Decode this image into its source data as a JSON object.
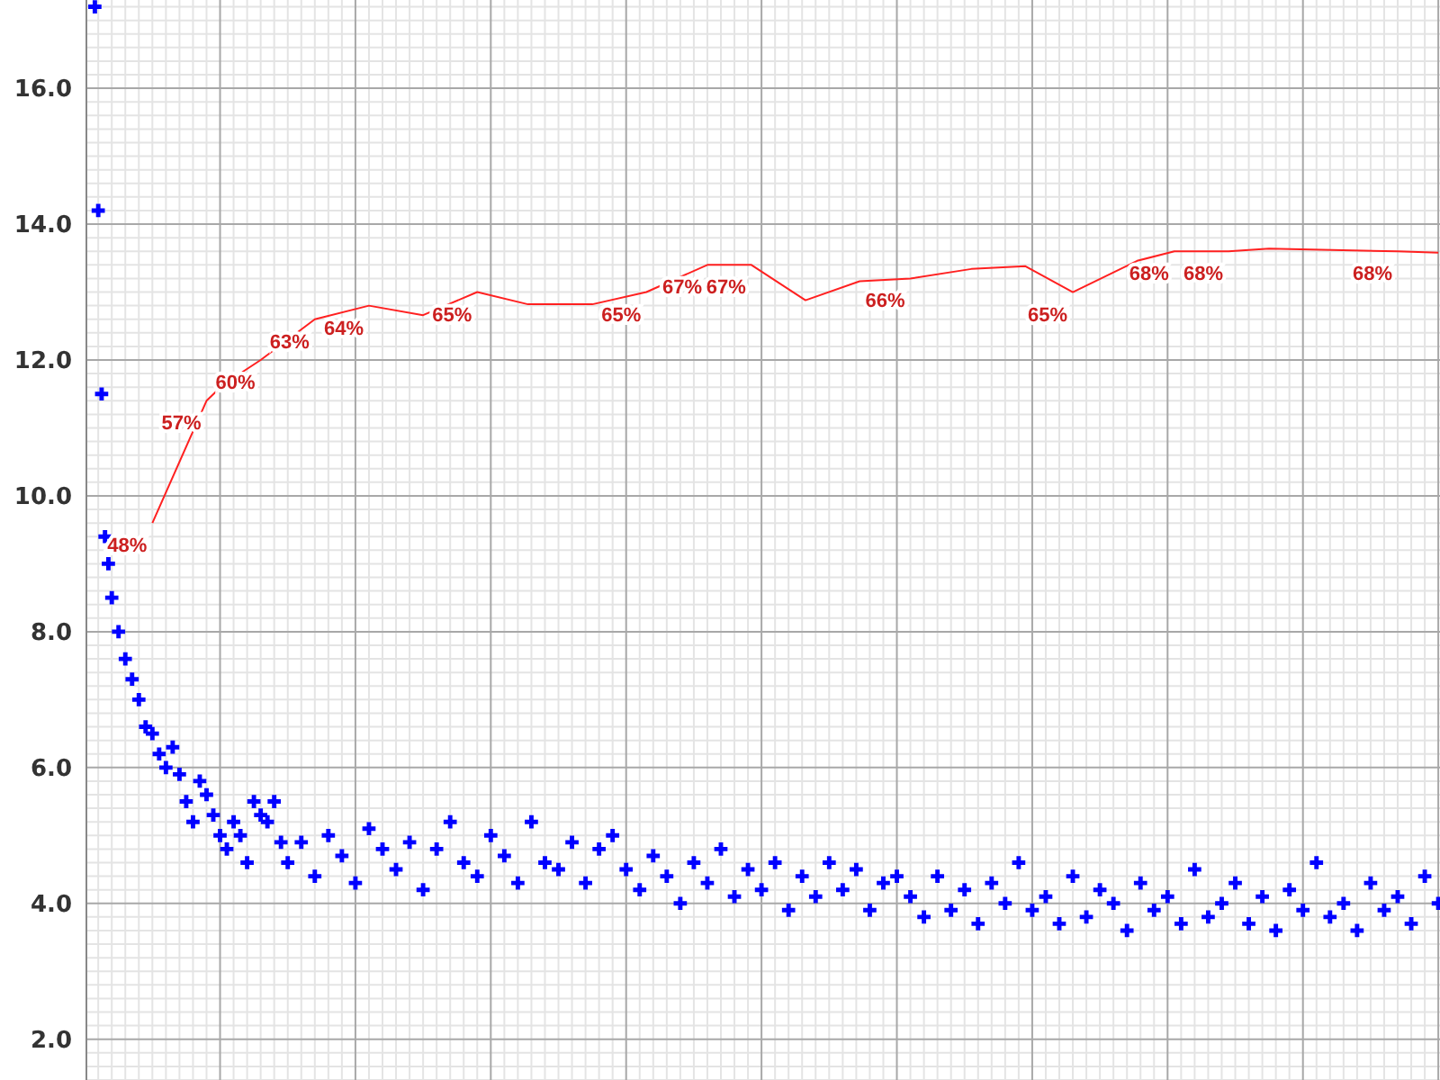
{
  "chart_data": {
    "type": "scatter",
    "grid": true,
    "tick_labels": "y",
    "ylim": [
      1.4,
      17.3
    ],
    "y2lim": [
      7,
      86.5
    ],
    "categories": [
      null,
      null,
      null,
      null,
      null,
      null,
      null,
      null,
      null,
      null,
      null,
      null,
      null,
      null,
      null,
      null,
      null,
      null,
      null,
      null,
      null,
      null,
      null,
      null,
      null,
      null,
      null,
      null,
      null,
      null,
      null,
      null,
      null,
      null,
      null,
      null,
      null,
      null,
      null,
      null,
      null,
      null,
      null,
      null,
      null,
      null,
      null,
      null,
      null,
      null,
      null,
      null,
      null,
      null,
      null,
      null,
      null,
      null,
      null,
      null,
      null,
      null,
      null,
      null,
      null,
      null,
      null,
      null,
      null,
      null,
      null,
      null,
      null,
      null,
      null,
      null,
      null,
      null,
      null,
      null,
      null,
      null,
      null,
      null,
      null,
      null,
      null,
      null,
      null,
      null,
      null,
      null,
      null,
      null,
      null,
      null,
      null,
      null,
      null,
      null,
      null,
      null,
      null,
      null,
      null,
      null,
      null,
      null,
      null,
      null,
      null,
      null,
      null,
      null,
      null,
      null,
      null,
      null,
      null,
      null,
      null,
      null,
      null,
      null,
      null,
      null,
      null,
      null,
      null,
      null,
      null,
      null,
      null,
      null,
      null,
      null,
      null,
      null,
      null,
      null,
      null,
      null,
      null,
      null,
      null,
      null,
      null,
      null,
      null,
      null,
      null,
      null,
      null,
      null,
      null,
      null,
      null,
      null,
      null,
      null,
      null,
      null,
      null,
      null,
      null,
      null,
      null,
      null,
      null,
      null,
      null,
      null,
      null,
      null,
      null,
      null,
      null,
      null,
      null,
      null,
      null,
      null,
      null,
      null,
      null,
      null,
      null,
      null,
      null,
      null,
      null,
      null,
      null,
      null,
      null,
      null,
      null,
      null,
      null,
      null,
      null,
      null,
      null,
      null,
      null,
      null,
      null,
      null,
      null,
      null,
      null,
      null,
      null,
      null,
      null,
      null,
      null,
      null,
      null,
      null,
      null,
      null,
      null,
      null,
      null,
      null,
      null,
      null,
      null,
      null,
      null,
      null,
      null,
      null,
      null,
      null,
      null,
      null,
      null,
      null,
      null,
      null,
      null,
      null,
      null,
      null,
      null,
      null,
      null,
      null,
      null,
      null,
      null,
      null,
      null,
      null,
      null,
      null,
      null,
      null,
      null,
      null,
      null,
      null,
      null,
      null,
      null,
      null,
      null,
      null,
      null,
      null,
      null,
      null,
      null,
      null,
      null,
      null,
      null,
      null,
      null,
      null,
      null,
      null,
      null,
      null,
      null,
      null,
      null,
      null,
      null,
      null,
      null,
      null,
      null,
      null,
      null,
      null,
      null,
      null,
      null,
      null,
      null,
      null,
      null,
      null,
      null,
      null,
      null,
      null,
      null,
      null,
      null,
      null,
      null,
      null,
      null,
      null,
      null,
      null,
      null,
      null,
      null,
      null,
      null,
      null,
      null,
      null,
      null,
      null,
      null,
      null,
      null,
      null,
      null,
      null,
      null,
      null,
      null,
      null,
      null,
      null,
      null,
      null,
      null,
      null,
      null,
      null,
      null,
      null,
      null,
      null,
      null,
      null,
      null,
      null,
      null,
      null,
      null,
      null,
      null,
      null,
      null,
      null,
      null,
      null,
      null,
      null,
      null,
      null,
      null,
      null,
      null,
      null,
      null,
      null,
      null,
      null,
      null,
      null,
      null,
      null,
      null,
      null,
      null,
      null,
      null,
      null,
      null,
      null,
      null,
      null,
      null,
      null,
      null,
      null,
      null,
      null,
      null,
      null
    ],
    "yticks": [
      {
        "value": 1.4,
        "label": null
      },
      {
        "value": 1.6,
        "label": null
      },
      {
        "value": 1.8,
        "label": null
      },
      {
        "value": 2,
        "label": "2.0"
      },
      {
        "value": 2.2,
        "label": null
      },
      {
        "value": 2.4,
        "label": null
      },
      {
        "value": 2.6,
        "label": null
      },
      {
        "value": 2.8,
        "label": null
      },
      {
        "value": 3,
        "label": null
      },
      {
        "value": 3.2,
        "label": null
      },
      {
        "value": 3.4,
        "label": null
      },
      {
        "value": 3.6,
        "label": null
      },
      {
        "value": 3.8,
        "label": null
      },
      {
        "value": 4,
        "label": "4.0"
      },
      {
        "value": 4.2,
        "label": null
      },
      {
        "value": 4.4,
        "label": null
      },
      {
        "value": 4.6,
        "label": null
      },
      {
        "value": 4.8,
        "label": null
      },
      {
        "value": 5,
        "label": null
      },
      {
        "value": 5.2,
        "label": null
      },
      {
        "value": 5.4,
        "label": null
      },
      {
        "value": 5.6,
        "label": null
      },
      {
        "value": 5.8,
        "label": null
      },
      {
        "value": 6,
        "label": "6.0"
      },
      {
        "value": 6.2,
        "label": null
      },
      {
        "value": 6.4,
        "label": null
      },
      {
        "value": 6.6,
        "label": null
      },
      {
        "value": 6.8,
        "label": null
      },
      {
        "value": 7,
        "label": null
      },
      {
        "value": 7.2,
        "label": null
      },
      {
        "value": 7.4,
        "label": null
      },
      {
        "value": 7.6,
        "label": null
      },
      {
        "value": 7.8,
        "label": null
      },
      {
        "value": 8,
        "label": "8.0"
      },
      {
        "value": 8.2,
        "label": null
      },
      {
        "value": 8.4,
        "label": null
      },
      {
        "value": 8.6,
        "label": null
      },
      {
        "value": 8.8,
        "label": null
      },
      {
        "value": 9,
        "label": null
      },
      {
        "value": 9.2,
        "label": null
      },
      {
        "value": 9.4,
        "label": null
      },
      {
        "value": 9.6,
        "label": null
      },
      {
        "value": 9.8,
        "label": null
      },
      {
        "value": 10,
        "label": "10.0"
      },
      {
        "value": 10.2,
        "label": null
      },
      {
        "value": 10.4,
        "label": null
      },
      {
        "value": 10.6,
        "label": null
      },
      {
        "value": 10.8,
        "label": null
      },
      {
        "value": 11,
        "label": null
      },
      {
        "value": 11.2,
        "label": null
      },
      {
        "value": 11.4,
        "label": null
      },
      {
        "value": 11.6,
        "label": null
      },
      {
        "value": 11.8,
        "label": null
      },
      {
        "value": 12,
        "label": "12.0"
      },
      {
        "value": 12.2,
        "label": null
      },
      {
        "value": 12.4,
        "label": null
      },
      {
        "value": 12.6,
        "label": null
      },
      {
        "value": 12.8,
        "label": null
      },
      {
        "value": 13,
        "label": null
      },
      {
        "value": 13.2,
        "label": null
      },
      {
        "value": 13.4,
        "label": null
      },
      {
        "value": 13.6,
        "label": null
      },
      {
        "value": 13.8,
        "label": null
      },
      {
        "value": 14,
        "label": "14.0"
      },
      {
        "value": 14.2,
        "label": null
      },
      {
        "value": 14.4,
        "label": null
      },
      {
        "value": 14.6,
        "label": null
      },
      {
        "value": 14.8,
        "label": null
      },
      {
        "value": 15,
        "label": null
      },
      {
        "value": 15.2,
        "label": null
      },
      {
        "value": 15.4,
        "label": null
      },
      {
        "value": 15.6,
        "label": null
      },
      {
        "value": 15.8,
        "label": null
      },
      {
        "value": 16,
        "label": "16.0"
      },
      {
        "value": 16.2,
        "label": null
      },
      {
        "value": 16.4,
        "label": null
      },
      {
        "value": 16.6,
        "label": null
      },
      {
        "value": 16.8,
        "label": null
      },
      {
        "value": 17,
        "label": null
      },
      {
        "value": 17.2,
        "label": null
      }
    ],
    "series": [
      {
        "color": "#0000ff",
        "marker": "cross",
        "values": [
          null,
          null,
          17.2,
          14.2,
          11.5,
          9.4,
          9.0,
          8.5,
          null,
          8.0,
          null,
          7.6,
          null,
          7.3,
          null,
          7.0,
          null,
          6.6,
          null,
          6.5,
          null,
          6.2,
          null,
          6.0,
          null,
          6.3,
          null,
          5.9,
          null,
          5.5,
          null,
          5.2,
          null,
          5.8,
          null,
          5.6,
          null,
          5.3,
          null,
          5.0,
          null,
          4.8,
          null,
          5.2,
          null,
          5.0,
          null,
          4.6,
          null,
          5.5,
          null,
          5.3,
          null,
          5.2,
          null,
          5.5,
          null,
          4.9,
          null,
          4.6,
          null,
          null,
          null,
          4.9,
          null,
          null,
          null,
          4.4,
          null,
          null,
          null,
          5.0,
          null,
          null,
          null,
          4.7,
          null,
          null,
          null,
          4.3,
          null,
          null,
          null,
          5.1,
          null,
          null,
          null,
          4.8,
          null,
          null,
          null,
          4.5,
          null,
          null,
          null,
          4.9,
          null,
          null,
          null,
          4.2,
          null,
          null,
          null,
          4.8,
          null,
          null,
          null,
          5.2,
          null,
          null,
          null,
          4.6,
          null,
          null,
          null,
          4.4,
          null,
          null,
          null,
          5.0,
          null,
          null,
          null,
          4.7,
          null,
          null,
          null,
          4.3,
          null,
          null,
          null,
          5.2,
          null,
          null,
          null,
          4.6,
          null,
          null,
          null,
          4.5,
          null,
          null,
          null,
          4.9,
          null,
          null,
          null,
          4.3,
          null,
          null,
          null,
          4.8,
          null,
          null,
          null,
          5.0,
          null,
          null,
          null,
          4.5,
          null,
          null,
          null,
          4.2,
          null,
          null,
          null,
          4.7,
          null,
          null,
          null,
          4.4,
          null,
          null,
          null,
          4.0,
          null,
          null,
          null,
          4.6,
          null,
          null,
          null,
          4.3,
          null,
          null,
          null,
          4.8,
          null,
          null,
          null,
          4.1,
          null,
          null,
          null,
          4.5,
          null,
          null,
          null,
          4.2,
          null,
          null,
          null,
          4.6,
          null,
          null,
          null,
          3.9,
          null,
          null,
          null,
          4.4,
          null,
          null,
          null,
          4.1,
          null,
          null,
          null,
          4.6,
          null,
          null,
          null,
          4.2,
          null,
          null,
          null,
          4.5,
          null,
          null,
          null,
          3.9,
          null,
          null,
          null,
          4.3,
          null,
          null,
          null,
          4.4,
          null,
          null,
          null,
          4.1,
          null,
          null,
          null,
          3.8,
          null,
          null,
          null,
          4.4,
          null,
          null,
          null,
          3.9,
          null,
          null,
          null,
          4.2,
          null,
          null,
          null,
          3.7,
          null,
          null,
          null,
          4.3,
          null,
          null,
          null,
          4.0,
          null,
          null,
          null,
          4.6,
          null,
          null,
          null,
          3.9,
          null,
          null,
          null,
          4.1,
          null,
          null,
          null,
          3.7,
          null,
          null,
          null,
          4.4,
          null,
          null,
          null,
          3.8,
          null,
          null,
          null,
          4.2,
          null,
          null,
          null,
          4.0,
          null,
          null,
          null,
          3.6,
          null,
          null,
          null,
          4.3,
          null,
          null,
          null,
          3.9,
          null,
          null,
          null,
          4.1,
          null,
          null,
          null,
          3.7,
          null,
          null,
          null,
          4.5,
          null,
          null,
          null,
          3.8,
          null,
          null,
          null,
          4.0,
          null,
          null,
          null,
          4.3,
          null,
          null,
          null,
          3.7,
          null,
          null,
          null,
          4.1,
          null,
          null,
          null,
          3.6,
          null,
          null,
          null,
          4.2,
          null,
          null,
          null,
          3.9,
          null,
          null,
          null,
          4.6,
          null,
          null,
          null,
          3.8,
          null,
          null,
          null,
          4.0,
          null,
          null,
          null,
          3.6,
          null,
          null,
          null,
          4.3,
          null,
          null,
          null,
          3.9,
          null,
          null,
          null,
          4.1,
          null,
          null,
          null,
          3.7,
          null,
          null,
          null,
          4.4,
          null,
          null,
          null,
          4.0
        ]
      },
      {
        "type": "line",
        "axis": "y2",
        "color": "#ff2020",
        "marker": "none",
        "values": [
          null,
          null,
          null,
          null,
          null,
          null,
          null,
          null,
          null,
          null,
          null,
          null,
          null,
          null,
          null,
          null,
          null,
          null,
          null,
          48,
          null,
          null,
          null,
          null,
          null,
          null,
          null,
          null,
          null,
          null,
          null,
          null,
          null,
          null,
          null,
          57,
          null,
          null,
          null,
          null,
          58.2,
          null,
          null,
          null,
          null,
          null,
          null,
          null,
          null,
          null,
          null,
          60,
          null,
          null,
          null,
          null,
          null,
          null,
          null,
          null,
          null,
          null,
          null,
          null,
          null,
          null,
          null,
          63,
          null,
          null,
          null,
          null,
          null,
          null,
          null,
          null,
          null,
          null,
          null,
          null,
          null,
          null,
          null,
          64,
          null,
          null,
          null,
          null,
          null,
          null,
          null,
          null,
          null,
          null,
          null,
          null,
          null,
          null,
          null,
          63.3,
          null,
          null,
          null,
          null,
          null,
          null,
          null,
          null,
          null,
          null,
          null,
          null,
          null,
          null,
          null,
          65,
          null,
          null,
          null,
          null,
          null,
          null,
          null,
          null,
          null,
          null,
          null,
          null,
          null,
          null,
          64.1,
          null,
          null,
          null,
          null,
          null,
          null,
          null,
          null,
          null,
          null,
          null,
          null,
          null,
          null,
          null,
          null,
          null,
          null,
          64.1,
          null,
          null,
          null,
          null,
          null,
          null,
          null,
          null,
          null,
          null,
          null,
          null,
          null,
          null,
          null,
          65,
          null,
          null,
          null,
          null,
          null,
          null,
          null,
          null,
          null,
          null,
          null,
          null,
          null,
          null,
          null,
          null,
          null,
          67,
          null,
          null,
          null,
          null,
          null,
          null,
          null,
          null,
          null,
          null,
          null,
          null,
          67,
          null,
          null,
          null,
          null,
          null,
          null,
          null,
          null,
          null,
          null,
          null,
          null,
          null,
          null,
          null,
          64.4,
          null,
          null,
          null,
          null,
          null,
          null,
          null,
          null,
          null,
          null,
          null,
          null,
          null,
          null,
          null,
          65.8,
          null,
          null,
          null,
          null,
          null,
          null,
          null,
          null,
          null,
          null,
          null,
          null,
          null,
          null,
          66,
          null,
          null,
          null,
          null,
          null,
          null,
          null,
          null,
          null,
          null,
          null,
          null,
          null,
          null,
          null,
          null,
          null,
          66.7,
          null,
          null,
          null,
          null,
          null,
          null,
          null,
          null,
          null,
          null,
          null,
          null,
          null,
          null,
          null,
          66.9,
          null,
          null,
          null,
          null,
          null,
          null,
          null,
          null,
          null,
          null,
          null,
          null,
          null,
          65,
          null,
          null,
          null,
          null,
          null,
          null,
          null,
          null,
          null,
          null,
          null,
          null,
          null,
          null,
          null,
          null,
          null,
          null,
          67.3,
          null,
          null,
          null,
          null,
          null,
          null,
          null,
          null,
          null,
          null,
          68,
          null,
          null,
          null,
          null,
          null,
          null,
          null,
          null,
          null,
          null,
          null,
          null,
          null,
          null,
          null,
          68,
          null,
          null,
          null,
          null,
          null,
          null,
          null,
          null,
          null,
          null,
          null,
          68.2,
          null,
          null,
          null,
          null,
          null,
          null,
          null,
          null,
          null,
          null,
          null,
          null,
          null,
          null,
          null,
          null,
          null,
          null,
          null,
          null,
          null,
          null,
          null,
          null,
          null,
          null,
          null,
          null,
          null,
          null,
          null,
          null,
          null,
          null,
          null,
          null,
          null,
          68,
          null,
          null,
          null,
          null,
          null,
          null,
          null,
          null,
          null,
          null,
          null,
          67.9
        ],
        "value_labels": [
          null,
          null,
          null,
          null,
          null,
          null,
          null,
          null,
          null,
          null,
          null,
          null,
          null,
          null,
          null,
          null,
          null,
          null,
          null,
          "48%",
          null,
          null,
          null,
          null,
          null,
          null,
          null,
          null,
          null,
          null,
          null,
          null,
          null,
          null,
          null,
          "57%",
          null,
          null,
          null,
          null,
          null,
          null,
          null,
          null,
          null,
          null,
          null,
          null,
          null,
          null,
          null,
          "60%",
          null,
          null,
          null,
          null,
          null,
          null,
          null,
          null,
          null,
          null,
          null,
          null,
          null,
          null,
          null,
          "63%",
          null,
          null,
          null,
          null,
          null,
          null,
          null,
          null,
          null,
          null,
          null,
          null,
          null,
          null,
          null,
          "64%",
          null,
          null,
          null,
          null,
          null,
          null,
          null,
          null,
          null,
          null,
          null,
          null,
          null,
          null,
          null,
          null,
          null,
          null,
          null,
          null,
          null,
          null,
          null,
          null,
          null,
          null,
          null,
          null,
          null,
          null,
          null,
          "65%",
          null,
          null,
          null,
          null,
          null,
          null,
          null,
          null,
          null,
          null,
          null,
          null,
          null,
          null,
          null,
          null,
          null,
          null,
          null,
          null,
          null,
          null,
          null,
          null,
          null,
          null,
          null,
          null,
          null,
          null,
          null,
          null,
          null,
          null,
          null,
          null,
          null,
          null,
          null,
          null,
          null,
          null,
          null,
          null,
          null,
          null,
          null,
          null,
          null,
          "65%",
          null,
          null,
          null,
          null,
          null,
          null,
          null,
          null,
          null,
          null,
          null,
          null,
          null,
          null,
          null,
          null,
          null,
          "67%",
          null,
          null,
          null,
          null,
          null,
          null,
          null,
          null,
          null,
          null,
          null,
          null,
          "67%",
          null,
          null,
          null,
          null,
          null,
          null,
          null,
          null,
          null,
          null,
          null,
          null,
          null,
          null,
          null,
          null,
          null,
          null,
          null,
          null,
          null,
          null,
          null,
          null,
          null,
          null,
          null,
          null,
          null,
          null,
          null,
          null,
          null,
          null,
          null,
          null,
          null,
          null,
          null,
          null,
          null,
          null,
          null,
          null,
          null,
          null,
          "66%",
          null,
          null,
          null,
          null,
          null,
          null,
          null,
          null,
          null,
          null,
          null,
          null,
          null,
          null,
          null,
          null,
          null,
          null,
          null,
          null,
          null,
          null,
          null,
          null,
          null,
          null,
          null,
          null,
          null,
          null,
          null,
          null,
          null,
          null,
          null,
          null,
          null,
          null,
          null,
          null,
          null,
          null,
          null,
          null,
          null,
          null,
          null,
          "65%",
          null,
          null,
          null,
          null,
          null,
          null,
          null,
          null,
          null,
          null,
          null,
          null,
          null,
          null,
          null,
          null,
          null,
          null,
          null,
          null,
          null,
          null,
          null,
          null,
          null,
          null,
          null,
          null,
          null,
          "68%",
          null,
          null,
          null,
          null,
          null,
          null,
          null,
          null,
          null,
          null,
          null,
          null,
          null,
          null,
          null,
          "68%",
          null,
          null,
          null,
          null,
          null,
          null,
          null,
          null,
          null,
          null,
          null,
          null,
          null,
          null,
          null,
          null,
          null,
          null,
          null,
          null,
          null,
          null,
          null,
          null,
          null,
          null,
          null,
          null,
          null,
          null,
          null,
          null,
          null,
          null,
          null,
          null,
          null,
          null,
          null,
          null,
          null,
          null,
          null,
          null,
          null,
          null,
          null,
          null,
          null,
          "68%",
          null,
          null,
          null,
          null,
          null,
          null,
          null,
          null,
          null,
          null,
          null,
          null
        ]
      }
    ]
  }
}
